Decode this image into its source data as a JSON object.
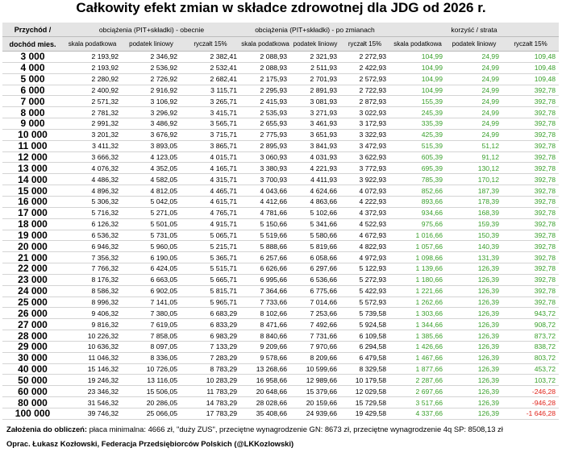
{
  "title": "Całkowity efekt zmian w składce zdrowotnej dla JDG od 2026 r.",
  "table": {
    "header_top": [
      "Przychód /",
      "obciążenia (PIT+składki) - obecnie",
      "obciążenia (PIT+składki) - po zmianach",
      "korzyść / strata"
    ],
    "header_sub": [
      "dochód mies.",
      "skala podatkowa",
      "podatek liniowy",
      "ryczałt 15%",
      "skala podatkowa",
      "podatek liniowy",
      "ryczałt 15%",
      "skala podatkowa",
      "podatek liniowy",
      "ryczałt 15%"
    ],
    "rows": [
      [
        "3 000",
        "2 193,92",
        "2 346,92",
        "2 382,41",
        "2 088,93",
        "2 321,93",
        "2 272,93",
        "104,99",
        "24,99",
        "109,48"
      ],
      [
        "4 000",
        "2 193,92",
        "2 536,92",
        "2 532,41",
        "2 088,93",
        "2 511,93",
        "2 422,93",
        "104,99",
        "24,99",
        "109,48"
      ],
      [
        "5 000",
        "2 280,92",
        "2 726,92",
        "2 682,41",
        "2 175,93",
        "2 701,93",
        "2 572,93",
        "104,99",
        "24,99",
        "109,48"
      ],
      [
        "6 000",
        "2 400,92",
        "2 916,92",
        "3 115,71",
        "2 295,93",
        "2 891,93",
        "2 722,93",
        "104,99",
        "24,99",
        "392,78"
      ],
      [
        "7 000",
        "2 571,32",
        "3 106,92",
        "3 265,71",
        "2 415,93",
        "3 081,93",
        "2 872,93",
        "155,39",
        "24,99",
        "392,78"
      ],
      [
        "8 000",
        "2 781,32",
        "3 296,92",
        "3 415,71",
        "2 535,93",
        "3 271,93",
        "3 022,93",
        "245,39",
        "24,99",
        "392,78"
      ],
      [
        "9 000",
        "2 991,32",
        "3 486,92",
        "3 565,71",
        "2 655,93",
        "3 461,93",
        "3 172,93",
        "335,39",
        "24,99",
        "392,78"
      ],
      [
        "10 000",
        "3 201,32",
        "3 676,92",
        "3 715,71",
        "2 775,93",
        "3 651,93",
        "3 322,93",
        "425,39",
        "24,99",
        "392,78"
      ],
      [
        "11 000",
        "3 411,32",
        "3 893,05",
        "3 865,71",
        "2 895,93",
        "3 841,93",
        "3 472,93",
        "515,39",
        "51,12",
        "392,78"
      ],
      [
        "12 000",
        "3 666,32",
        "4 123,05",
        "4 015,71",
        "3 060,93",
        "4 031,93",
        "3 622,93",
        "605,39",
        "91,12",
        "392,78"
      ],
      [
        "13 000",
        "4 076,32",
        "4 352,05",
        "4 165,71",
        "3 380,93",
        "4 221,93",
        "3 772,93",
        "695,39",
        "130,12",
        "392,78"
      ],
      [
        "14 000",
        "4 486,32",
        "4 582,05",
        "4 315,71",
        "3 700,93",
        "4 411,93",
        "3 922,93",
        "785,39",
        "170,12",
        "392,78"
      ],
      [
        "15 000",
        "4 896,32",
        "4 812,05",
        "4 465,71",
        "4 043,66",
        "4 624,66",
        "4 072,93",
        "852,66",
        "187,39",
        "392,78"
      ],
      [
        "16 000",
        "5 306,32",
        "5 042,05",
        "4 615,71",
        "4 412,66",
        "4 863,66",
        "4 222,93",
        "893,66",
        "178,39",
        "392,78"
      ],
      [
        "17 000",
        "5 716,32",
        "5 271,05",
        "4 765,71",
        "4 781,66",
        "5 102,66",
        "4 372,93",
        "934,66",
        "168,39",
        "392,78"
      ],
      [
        "18 000",
        "6 126,32",
        "5 501,05",
        "4 915,71",
        "5 150,66",
        "5 341,66",
        "4 522,93",
        "975,66",
        "159,39",
        "392,78"
      ],
      [
        "19 000",
        "6 536,32",
        "5 731,05",
        "5 065,71",
        "5 519,66",
        "5 580,66",
        "4 672,93",
        "1 016,66",
        "150,39",
        "392,78"
      ],
      [
        "20 000",
        "6 946,32",
        "5 960,05",
        "5 215,71",
        "5 888,66",
        "5 819,66",
        "4 822,93",
        "1 057,66",
        "140,39",
        "392,78"
      ],
      [
        "21 000",
        "7 356,32",
        "6 190,05",
        "5 365,71",
        "6 257,66",
        "6 058,66",
        "4 972,93",
        "1 098,66",
        "131,39",
        "392,78"
      ],
      [
        "22 000",
        "7 766,32",
        "6 424,05",
        "5 515,71",
        "6 626,66",
        "6 297,66",
        "5 122,93",
        "1 139,66",
        "126,39",
        "392,78"
      ],
      [
        "23 000",
        "8 176,32",
        "6 663,05",
        "5 665,71",
        "6 995,66",
        "6 536,66",
        "5 272,93",
        "1 180,66",
        "126,39",
        "392,78"
      ],
      [
        "24 000",
        "8 586,32",
        "6 902,05",
        "5 815,71",
        "7 364,66",
        "6 775,66",
        "5 422,93",
        "1 221,66",
        "126,39",
        "392,78"
      ],
      [
        "25 000",
        "8 996,32",
        "7 141,05",
        "5 965,71",
        "7 733,66",
        "7 014,66",
        "5 572,93",
        "1 262,66",
        "126,39",
        "392,78"
      ],
      [
        "26 000",
        "9 406,32",
        "7 380,05",
        "6 683,29",
        "8 102,66",
        "7 253,66",
        "5 739,58",
        "1 303,66",
        "126,39",
        "943,72"
      ],
      [
        "27 000",
        "9 816,32",
        "7 619,05",
        "6 833,29",
        "8 471,66",
        "7 492,66",
        "5 924,58",
        "1 344,66",
        "126,39",
        "908,72"
      ],
      [
        "28 000",
        "10 226,32",
        "7 858,05",
        "6 983,29",
        "8 840,66",
        "7 731,66",
        "6 109,58",
        "1 385,66",
        "126,39",
        "873,72"
      ],
      [
        "29 000",
        "10 636,32",
        "8 097,05",
        "7 133,29",
        "9 209,66",
        "7 970,66",
        "6 294,58",
        "1 426,66",
        "126,39",
        "838,72"
      ],
      [
        "30 000",
        "11 046,32",
        "8 336,05",
        "7 283,29",
        "9 578,66",
        "8 209,66",
        "6 479,58",
        "1 467,66",
        "126,39",
        "803,72"
      ],
      [
        "40 000",
        "15 146,32",
        "10 726,05",
        "8 783,29",
        "13 268,66",
        "10 599,66",
        "8 329,58",
        "1 877,66",
        "126,39",
        "453,72"
      ],
      [
        "50 000",
        "19 246,32",
        "13 116,05",
        "10 283,29",
        "16 958,66",
        "12 989,66",
        "10 179,58",
        "2 287,66",
        "126,39",
        "103,72"
      ],
      [
        "60 000",
        "23 346,32",
        "15 506,05",
        "11 783,29",
        "20 648,66",
        "15 379,66",
        "12 029,58",
        "2 697,66",
        "126,39",
        "-246,28"
      ],
      [
        "80 000",
        "31 546,32",
        "20 286,05",
        "14 783,29",
        "28 028,66",
        "20 159,66",
        "15 729,58",
        "3 517,66",
        "126,39",
        "-946,28"
      ],
      [
        "100 000",
        "39 746,32",
        "25 066,05",
        "17 783,29",
        "35 408,66",
        "24 939,66",
        "19 429,58",
        "4 337,66",
        "126,39",
        "-1 646,28"
      ]
    ]
  },
  "footer": {
    "assumptions_label": "Założenia do obliczeń:",
    "assumptions": " płaca minimalna: 4666 zł, \"duży ZUS\", przeciętne wynagrodzenie GN: 8673 zł, przeciętne wynagrodzenie 4q SP: 8508,13 zł",
    "credit": "Oprac. Łukasz Kozłowski, Federacja Przedsiębiorców Polskich (@LKKozlowski)"
  }
}
